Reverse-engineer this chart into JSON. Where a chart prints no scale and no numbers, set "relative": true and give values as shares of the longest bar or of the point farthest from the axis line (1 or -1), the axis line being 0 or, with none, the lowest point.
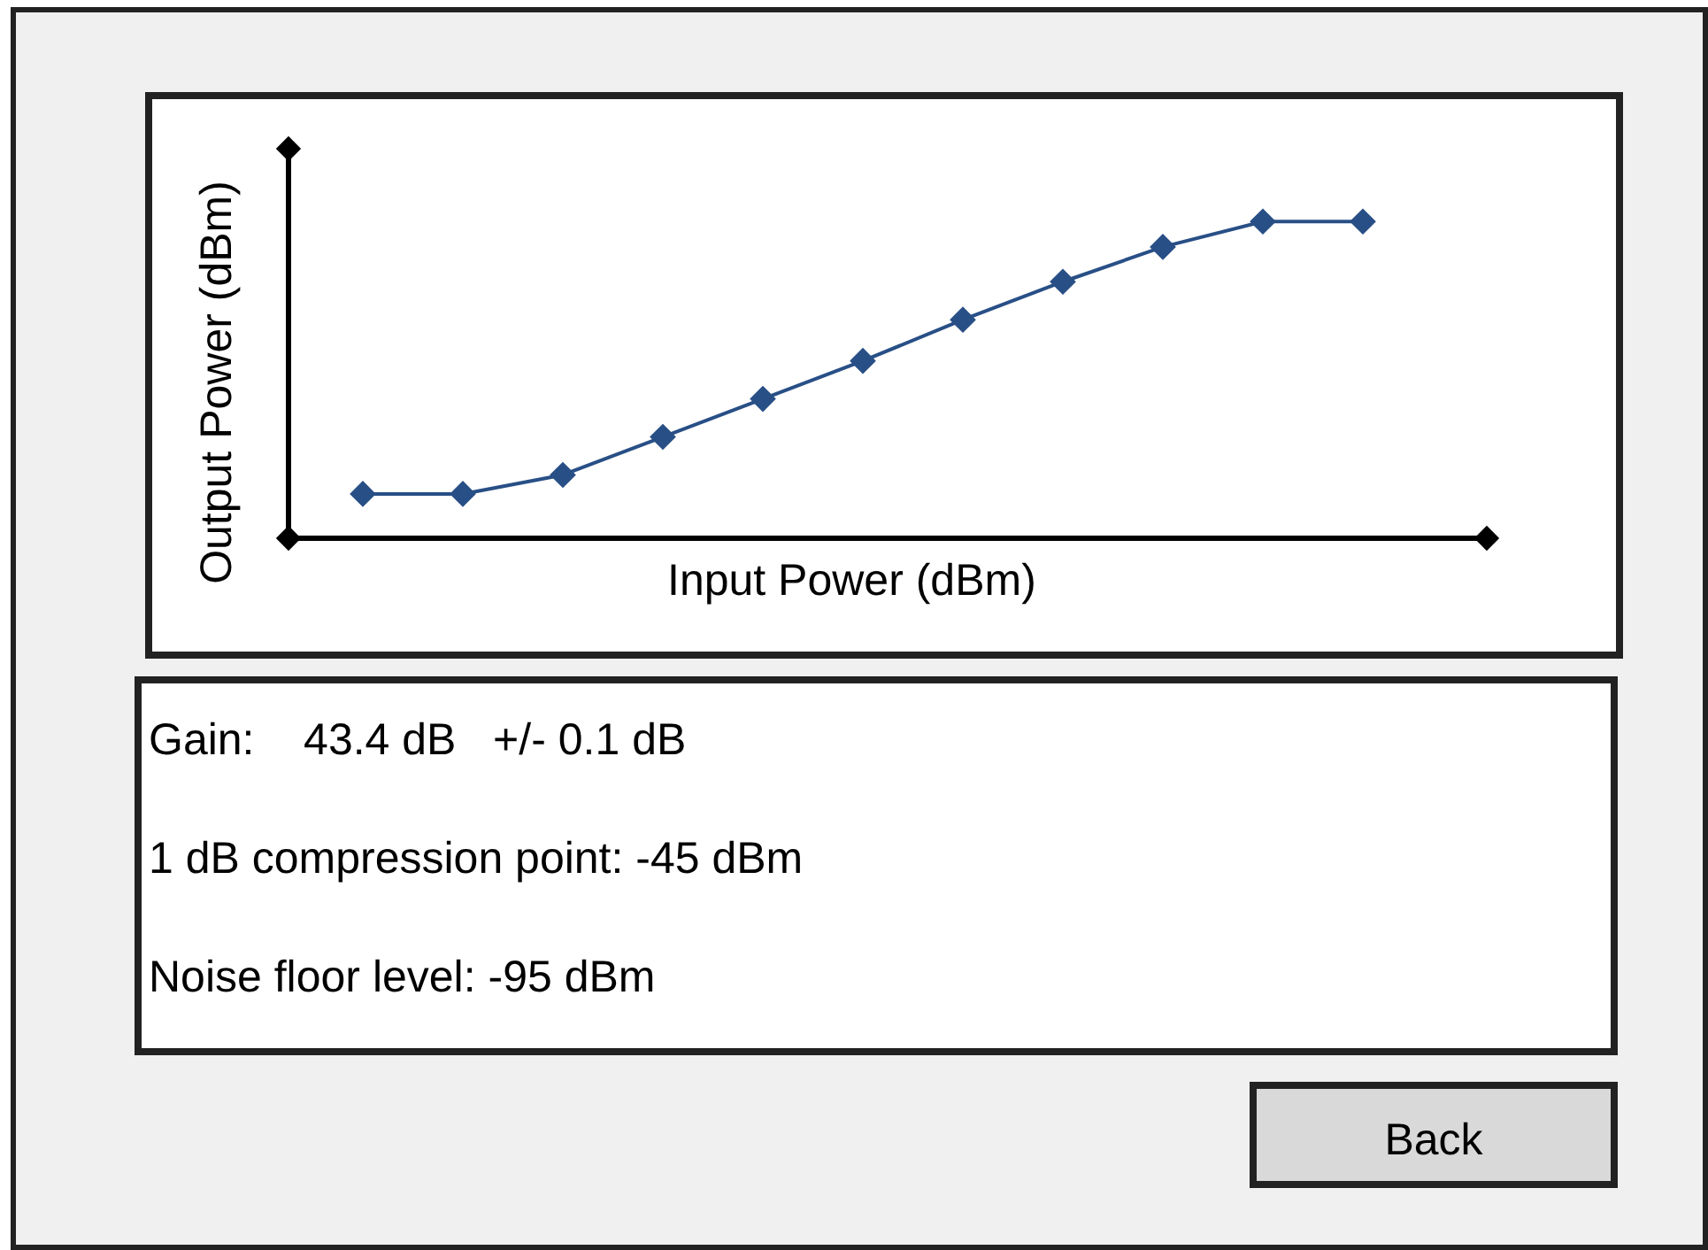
{
  "chart_data": {
    "type": "line",
    "relative": true,
    "xlabel": "Input Power (dBm)",
    "ylabel": "Output Power (dBm)",
    "categories": [
      null,
      null,
      null,
      null,
      null,
      null,
      null,
      null,
      null,
      null,
      null
    ],
    "series": [
      {
        "color": "#284f86",
        "values": [
          0.14,
          0.14,
          0.2,
          0.32,
          0.44,
          0.56,
          0.69,
          0.81,
          0.92,
          1,
          1
        ]
      }
    ],
    "marker": "diamond",
    "line_style": "solid",
    "grid": false,
    "legend": false,
    "annotations": [
      "Gain:    43.4 dB   +/- 0.1 dB",
      "1 dB compression point: -45 dBm",
      "Noise floor level: -95 dBm",
      "Back"
    ]
  }
}
